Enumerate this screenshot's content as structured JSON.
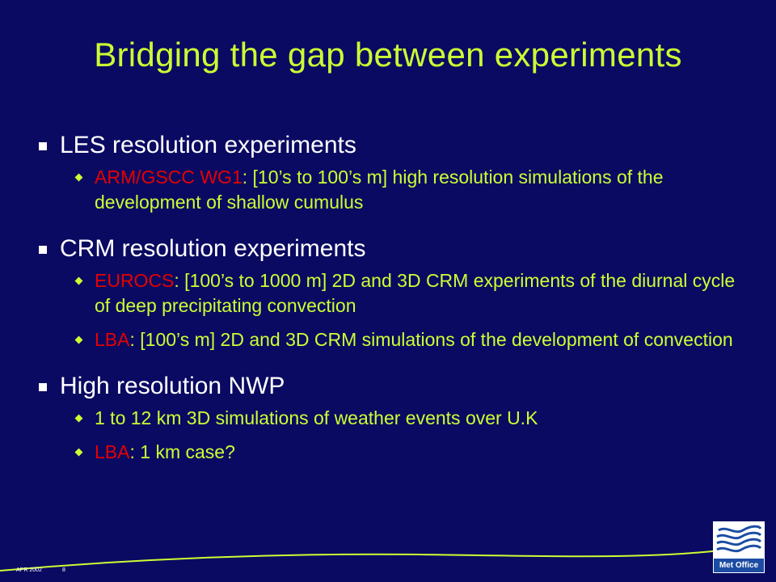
{
  "slide": {
    "title": "Bridging the gap between experiments",
    "sections": [
      {
        "heading": "LES resolution experiments",
        "items": [
          {
            "label": "ARM/GSCC WG1",
            "text": ": [10’s to 100’s m] high resolution simulations of the development of shallow cumulus"
          }
        ]
      },
      {
        "heading": "CRM resolution experiments",
        "items": [
          {
            "label": "EUROCS",
            "text": ": [100’s to 1000 m] 2D and 3D CRM experiments of the diurnal cycle of deep precipitating convection"
          },
          {
            "label": "LBA",
            "text": ": [100’s m]  2D and 3D CRM simulations of the development of convection"
          }
        ]
      },
      {
        "heading": "High resolution NWP",
        "items": [
          {
            "label": "",
            "text": "1 to 12 km 3D simulations of weather events over U.K"
          },
          {
            "label": "LBA",
            "text": ": 1 km case?"
          }
        ]
      }
    ]
  },
  "footer": {
    "date": "APR 2002",
    "page": "8",
    "logo_text": "Met Office"
  },
  "colors": {
    "background": "#0a0a62",
    "title": "#ccff33",
    "label": "#e60000",
    "body": "#ffffff"
  }
}
